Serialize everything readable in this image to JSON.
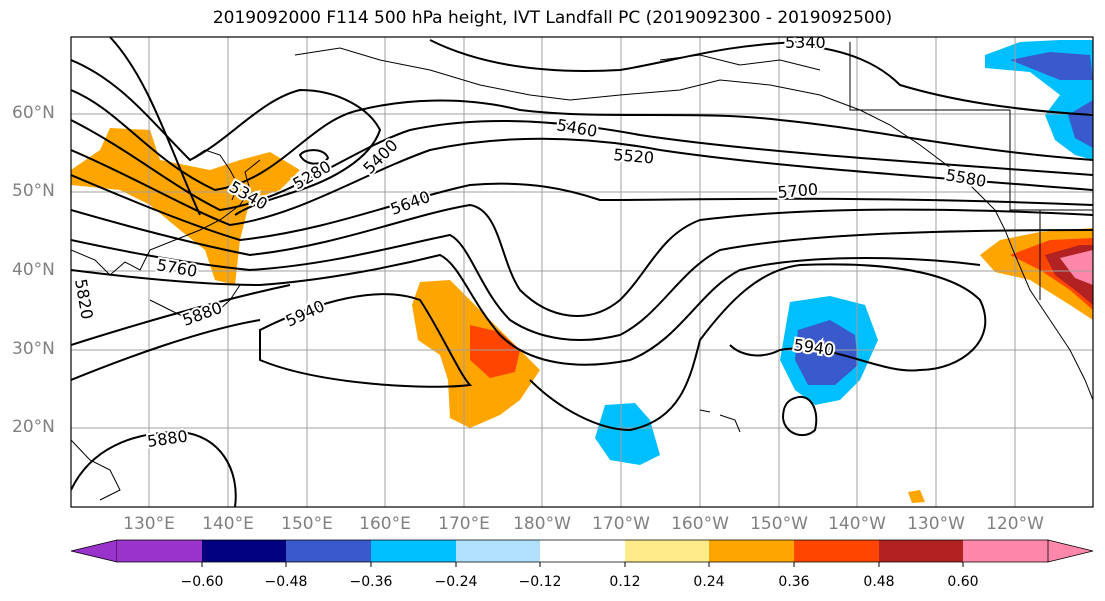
{
  "title": "2019092000 F114 500 hPa height, IVT Landfall PC (2019092300 - 2019092500)",
  "lat_labels": [
    "60°N",
    "50°N",
    "40°N",
    "30°N",
    "20°N"
  ],
  "lon_labels": [
    "130°E",
    "140°E",
    "150°E",
    "160°E",
    "170°E",
    "180°W",
    "170°W",
    "160°W",
    "150°W",
    "140°W",
    "130°W",
    "120°W"
  ],
  "contour_labels": [
    "5340",
    "5460",
    "5520",
    "5580",
    "5700",
    "5640",
    "5400",
    "5280",
    "5340",
    "5760",
    "5820",
    "5880",
    "5940",
    "5940",
    "5880"
  ],
  "colorbar": {
    "colors": [
      "#9933cc",
      "#000080",
      "#3a5acb",
      "#00bfff",
      "#b0e0fe",
      "#ffffff",
      "#ffeb8a",
      "#ffa500",
      "#ff4500",
      "#b22222",
      "#ff88aa",
      "#ffb6c8"
    ],
    "ticks": [
      "−0.60",
      "−0.48",
      "−0.36",
      "−0.24",
      "−0.12",
      "0.12",
      "0.24",
      "0.36",
      "0.48",
      "0.60"
    ]
  }
}
